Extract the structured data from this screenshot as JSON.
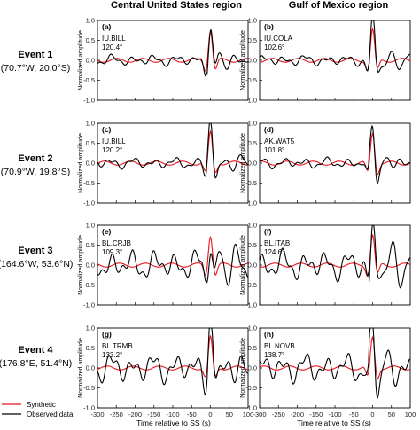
{
  "column_titles": [
    "Central United States region",
    "Gulf of Mexico region"
  ],
  "events": [
    {
      "name": "Event 1",
      "location": "(70.7°W, 20.0°S)"
    },
    {
      "name": "Event 2",
      "location": "(70.9°W, 19.8°S)"
    },
    {
      "name": "Event 3",
      "location": "(164.6°W, 53.6°N)"
    },
    {
      "name": "Event 4",
      "location": "(176.8°E, 51.4°N)"
    }
  ],
  "legend": [
    {
      "label": "Synthetic",
      "color": "#e8141c"
    },
    {
      "label": "Observed data",
      "color": "#000000"
    }
  ],
  "chart_data": {
    "type": "line",
    "xlabel": "Time relative to SS (s)",
    "ylabel": "Normalized amplitude",
    "xlim": [
      -300,
      100
    ],
    "ylim": [
      -1.0,
      1.0
    ],
    "xticks": [
      "-300",
      "-250",
      "-200",
      "-150",
      "-100",
      "-50",
      "0",
      "50",
      "100"
    ],
    "yticks": [
      "1.0",
      "0.5",
      "0.0",
      "-0.5",
      "-1.0"
    ],
    "panels": [
      {
        "label": "(a)",
        "station": "IU.BILL",
        "distance": "120.4°",
        "event": 0,
        "column": 0
      },
      {
        "label": "(b)",
        "station": "IU.COLA",
        "distance": "102.6°",
        "event": 0,
        "column": 1
      },
      {
        "label": "(c)",
        "station": "IU.BILL",
        "distance": "120.2°",
        "event": 1,
        "column": 0
      },
      {
        "label": "(d)",
        "station": "AK.WAT5",
        "distance": "101.8°",
        "event": 1,
        "column": 1
      },
      {
        "label": "(e)",
        "station": "BL.CRJB",
        "distance": "109.3°",
        "event": 2,
        "column": 0
      },
      {
        "label": "(f)",
        "station": "BL.ITAB",
        "distance": "124.6°",
        "event": 2,
        "column": 1
      },
      {
        "label": "(g)",
        "station": "BL.TRMB",
        "distance": "133.2°",
        "event": 3,
        "column": 0
      },
      {
        "label": "(h)",
        "station": "BL.NOVB",
        "distance": "138.7°",
        "event": 3,
        "column": 1
      }
    ]
  }
}
